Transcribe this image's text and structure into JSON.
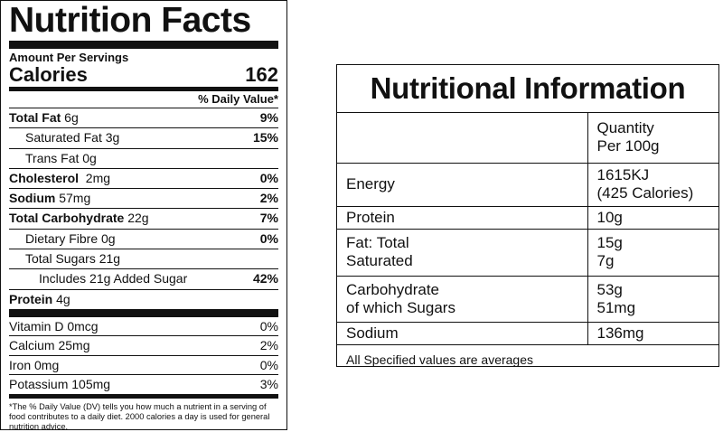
{
  "nutrition_facts": {
    "title": "Nutrition Facts",
    "amount_per": "Amount Per Servings",
    "calories_label": "Calories",
    "calories_value": "162",
    "dv_header": "% Daily Value*",
    "rows": [
      {
        "label_bold": "Total Fat",
        "label": " 6g",
        "pct": "9%"
      },
      {
        "label_bold": "",
        "label": "Saturated Fat 3g",
        "pct": "15%"
      },
      {
        "label_bold": "",
        "label": "Trans Fat 0g",
        "pct": ""
      },
      {
        "label_bold": "Cholesterol",
        "label": "  2mg",
        "pct": "0%"
      },
      {
        "label_bold": "Sodium",
        "label": " 57mg",
        "pct": "2%"
      },
      {
        "label_bold": "Total Carbohydrate",
        "label": " 22g",
        "pct": "7%"
      },
      {
        "label_bold": "",
        "label": "Dietary Fibre 0g",
        "pct": "0%"
      },
      {
        "label_bold": "",
        "label": "Total Sugars 21g",
        "pct": ""
      },
      {
        "label_bold": "",
        "label": "Includes 21g Added Sugar",
        "pct": "42%"
      },
      {
        "label_bold": "Protein",
        "label": " 4g",
        "pct": ""
      }
    ],
    "vitamins": [
      {
        "label": "Vitamin D 0mcg",
        "pct": "0%"
      },
      {
        "label": "Calcium 25mg",
        "pct": "2%"
      },
      {
        "label": "Iron 0mg",
        "pct": "0%"
      },
      {
        "label": "Potassium 105mg",
        "pct": "3%"
      }
    ],
    "footnote": "*The % Daily Value (DV) tells you how much a nutrient in a serving of food contributes to a daily diet. 2000 calories a day is used for general nutrition advice."
  },
  "nutritional_information": {
    "title": "Nutritional Information",
    "header": {
      "col1": "",
      "col2_line1": "Quantity",
      "col2_line2": "Per 100g"
    },
    "rows": [
      {
        "name_line1": "Energy",
        "name_line2": "",
        "value_line1": "1615KJ",
        "value_line2": "(425 Calories)"
      },
      {
        "name_line1": "Protein",
        "name_line2": "",
        "value_line1": "10g",
        "value_line2": ""
      },
      {
        "name_line1": "Fat: Total",
        "name_line2": "Saturated",
        "value_line1": "15g",
        "value_line2": "7g"
      },
      {
        "name_line1": "Carbohydrate",
        "name_line2": "of which Sugars",
        "value_line1": "53g",
        "value_line2": "51mg"
      },
      {
        "name_line1": "Sodium",
        "name_line2": "",
        "value_line1": "136mg",
        "value_line2": ""
      }
    ],
    "note": "All Specified values are averages"
  }
}
